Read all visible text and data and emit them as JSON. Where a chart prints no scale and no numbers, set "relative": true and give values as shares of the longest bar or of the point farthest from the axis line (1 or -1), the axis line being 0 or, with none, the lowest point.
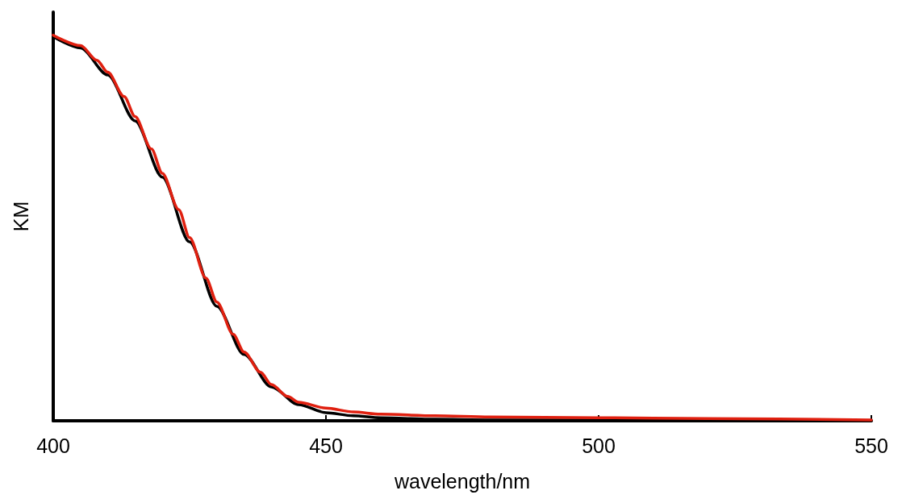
{
  "chart_data": {
    "type": "line",
    "xlabel": "wavelength/nm",
    "ylabel": "KM",
    "relative": true,
    "xlim": [
      400,
      550
    ],
    "xticks": [
      400,
      450,
      500,
      550
    ],
    "grid": false,
    "marker": "none",
    "line_style": "solid",
    "series": [
      {
        "color": "#000000",
        "x": [
          400,
          405,
          410,
          415,
          420,
          425,
          430,
          435,
          440,
          445,
          450,
          455,
          460,
          470,
          480,
          500,
          550
        ],
        "values": [
          0.996,
          0.967,
          0.897,
          0.778,
          0.632,
          0.464,
          0.297,
          0.172,
          0.088,
          0.042,
          0.021,
          0.013,
          0.008,
          0.004,
          0.002,
          0.002,
          0
        ]
      },
      {
        "color": "#e02010",
        "x": [
          400,
          405,
          408,
          410,
          413,
          415,
          418,
          420,
          423,
          425,
          428,
          430,
          433,
          435,
          438,
          440,
          443,
          445,
          450,
          455,
          460,
          470,
          480,
          500,
          520,
          550
        ],
        "values": [
          1,
          0.973,
          0.935,
          0.904,
          0.841,
          0.789,
          0.705,
          0.642,
          0.548,
          0.475,
          0.37,
          0.308,
          0.224,
          0.178,
          0.126,
          0.094,
          0.063,
          0.048,
          0.033,
          0.023,
          0.017,
          0.013,
          0.01,
          0.008,
          0.006,
          0.002
        ]
      }
    ]
  }
}
